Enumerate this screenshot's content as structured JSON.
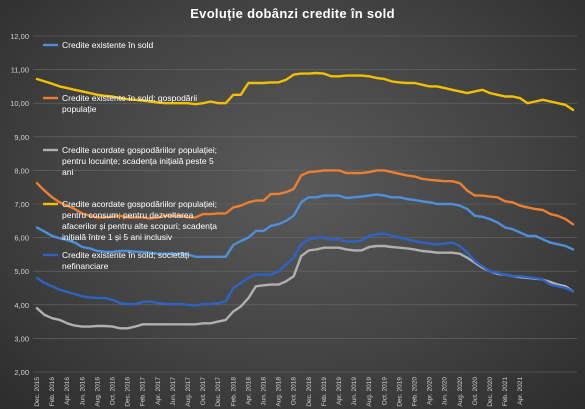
{
  "chart_data": {
    "type": "line",
    "title": "Evoluție dobânzi credite în sold",
    "ylim": [
      2,
      12
    ],
    "y_ticks": [
      "2,00",
      "3,00",
      "4,00",
      "5,00",
      "6,00",
      "7,00",
      "8,00",
      "9,00",
      "10,00",
      "11,00",
      "12,00"
    ],
    "x_start": "2015-12",
    "x_end": "2021-04",
    "x_tick_labels": [
      "Dec. 2015",
      "Feb. 2016",
      "Apr. 2016",
      "Jun. 2016",
      "Aug. 2016",
      "Oct. 2016",
      "Dec. 2016",
      "Feb. 2017",
      "Apr. 2017",
      "Jun. 2017",
      "Aug. 2017",
      "Oct. 2017",
      "Dec. 2017",
      "Feb. 2018",
      "Apr. 2018",
      "Jun. 2018",
      "Aug. 2018",
      "Oct. 2018",
      "Dec. 2018",
      "Feb. 2019",
      "Apr. 2019",
      "Jun. 2019",
      "Aug. 2019",
      "Oct. 2019",
      "Dec. 2019",
      "Feb. 2020",
      "Apr. 2020",
      "Jun. 2020",
      "Aug. 2020",
      "Oct. 2020",
      "Dec. 2020",
      "Feb. 2021",
      "Apr. 2021"
    ],
    "grid": true,
    "legend_position": "left, inside plot",
    "series": [
      {
        "name": "Credite existente în sold",
        "color": "#4f8fd9",
        "values": [
          6.3,
          6.18,
          6.05,
          5.98,
          5.93,
          5.85,
          5.72,
          5.68,
          5.6,
          5.58,
          5.57,
          5.6,
          5.6,
          5.58,
          5.57,
          5.55,
          5.52,
          5.52,
          5.52,
          5.52,
          5.5,
          5.43,
          5.43,
          5.43,
          5.43,
          5.43,
          5.78,
          5.9,
          6.0,
          6.2,
          6.2,
          6.35,
          6.4,
          6.5,
          6.65,
          7.05,
          7.2,
          7.2,
          7.25,
          7.25,
          7.25,
          7.18,
          7.2,
          7.22,
          7.25,
          7.28,
          7.25,
          7.2,
          7.2,
          7.15,
          7.12,
          7.08,
          7.05,
          7.0,
          7.0,
          7.0,
          6.95,
          6.85,
          6.65,
          6.62,
          6.55,
          6.45,
          6.3,
          6.25,
          6.15,
          6.05,
          6.05,
          5.95,
          5.85,
          5.8,
          5.75,
          5.65
        ]
      },
      {
        "name": "Credite existente în sold; gospodării populație",
        "color": "#ec7e30",
        "values": [
          7.62,
          7.4,
          7.2,
          7.05,
          6.95,
          6.85,
          6.72,
          6.65,
          6.6,
          6.6,
          6.62,
          6.65,
          6.6,
          6.6,
          6.6,
          6.57,
          6.6,
          6.65,
          6.65,
          6.65,
          6.6,
          6.6,
          6.7,
          6.7,
          6.72,
          6.72,
          6.9,
          6.95,
          7.05,
          7.1,
          7.1,
          7.3,
          7.3,
          7.35,
          7.45,
          7.85,
          7.95,
          7.97,
          8.0,
          8.0,
          8.0,
          7.92,
          7.92,
          7.92,
          7.95,
          8.0,
          8.0,
          7.95,
          7.9,
          7.85,
          7.82,
          7.75,
          7.72,
          7.7,
          7.68,
          7.68,
          7.62,
          7.4,
          7.25,
          7.25,
          7.22,
          7.2,
          7.08,
          7.05,
          6.95,
          6.9,
          6.85,
          6.82,
          6.7,
          6.65,
          6.55,
          6.4
        ]
      },
      {
        "name": "Credite acordate gospodăriilor populației; pentru locuințe; scadența inițială peste 5 ani",
        "color": "#b0b0b0",
        "values": [
          3.9,
          3.7,
          3.6,
          3.55,
          3.45,
          3.38,
          3.35,
          3.35,
          3.37,
          3.37,
          3.35,
          3.3,
          3.3,
          3.35,
          3.42,
          3.42,
          3.42,
          3.42,
          3.42,
          3.42,
          3.42,
          3.42,
          3.45,
          3.45,
          3.5,
          3.55,
          3.8,
          3.95,
          4.2,
          4.55,
          4.58,
          4.6,
          4.6,
          4.7,
          4.85,
          5.45,
          5.62,
          5.65,
          5.7,
          5.7,
          5.7,
          5.65,
          5.62,
          5.62,
          5.72,
          5.75,
          5.75,
          5.72,
          5.7,
          5.68,
          5.65,
          5.6,
          5.58,
          5.55,
          5.55,
          5.55,
          5.52,
          5.4,
          5.25,
          5.1,
          5.0,
          4.92,
          4.9,
          4.85,
          4.82,
          4.8,
          4.78,
          4.75,
          4.68,
          4.6,
          4.55,
          4.4
        ]
      },
      {
        "name": "Credite acordate gospodăriilor populației; pentru consum; pentru dezvoltarea afacerilor și pentru alte scopuri; scadența inițială între 1 și 5 ani inclusiv",
        "color": "#f2c000",
        "values": [
          10.72,
          10.65,
          10.58,
          10.5,
          10.45,
          10.4,
          10.35,
          10.3,
          10.25,
          10.22,
          10.2,
          10.15,
          10.12,
          10.1,
          10.08,
          10.05,
          10.02,
          10.0,
          10.0,
          10.0,
          10.0,
          9.97,
          10.0,
          10.05,
          10.0,
          10.0,
          10.25,
          10.25,
          10.6,
          10.6,
          10.6,
          10.62,
          10.62,
          10.7,
          10.85,
          10.88,
          10.88,
          10.9,
          10.88,
          10.8,
          10.8,
          10.82,
          10.82,
          10.82,
          10.8,
          10.75,
          10.72,
          10.65,
          10.62,
          10.6,
          10.6,
          10.55,
          10.5,
          10.5,
          10.45,
          10.4,
          10.35,
          10.3,
          10.35,
          10.4,
          10.3,
          10.25,
          10.2,
          10.2,
          10.15,
          10.0,
          10.05,
          10.1,
          10.05,
          10.0,
          9.95,
          9.8
        ]
      },
      {
        "name": "Credite existente în sold; societăți nefinanciare",
        "color": "#2f62c4",
        "values": [
          4.8,
          4.65,
          4.55,
          4.45,
          4.38,
          4.32,
          4.25,
          4.22,
          4.2,
          4.2,
          4.15,
          4.05,
          4.02,
          4.02,
          4.08,
          4.1,
          4.05,
          4.02,
          4.02,
          4.02,
          4.0,
          3.98,
          4.02,
          4.02,
          4.05,
          4.1,
          4.5,
          4.65,
          4.8,
          4.9,
          4.9,
          4.9,
          5.0,
          5.2,
          5.4,
          5.8,
          5.95,
          6.0,
          6.0,
          5.95,
          5.95,
          5.88,
          5.88,
          5.92,
          6.05,
          6.1,
          6.12,
          6.05,
          6.0,
          5.95,
          5.9,
          5.85,
          5.82,
          5.8,
          5.82,
          5.85,
          5.75,
          5.55,
          5.3,
          5.15,
          5.0,
          4.95,
          4.9,
          4.85,
          4.85,
          4.82,
          4.8,
          4.75,
          4.6,
          4.55,
          4.5,
          4.4
        ]
      }
    ],
    "legend_lines": [
      [
        "Credite existente în sold"
      ],
      [
        "Credite existente în sold; gospodării",
        "populație"
      ],
      [
        "Credite acordate gospodăriilor populației;",
        "pentru locuințe; scadența inițială peste 5",
        "ani"
      ],
      [
        "Credite acordate gospodăriilor populației;",
        "pentru consum; pentru dezvoltarea",
        "afacerilor și pentru alte scopuri; scadența",
        "inițială între 1 și 5 ani inclusiv"
      ],
      [
        "Credite existente în sold; societăți",
        "nefinanciare"
      ]
    ]
  }
}
